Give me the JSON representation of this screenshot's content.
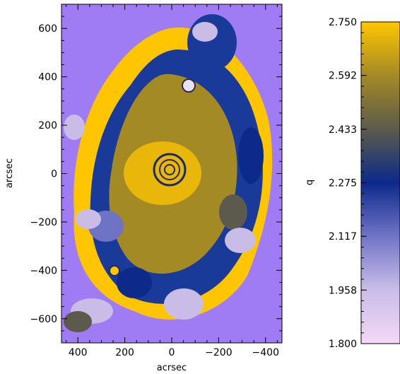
{
  "chart_data": [
    {
      "type": "heatmap",
      "title": "",
      "xlabel": "acrsec",
      "ylabel": "arcsec",
      "xlim": [
        470,
        -470
      ],
      "ylim": [
        -700,
        700
      ],
      "x_ticks": [
        400,
        200,
        0,
        -200,
        -400
      ],
      "x_tick_labels": [
        "400",
        "200",
        "0",
        "−200",
        "−400"
      ],
      "y_ticks": [
        600,
        400,
        200,
        0,
        -200,
        -400,
        -600
      ],
      "y_tick_labels": [
        "600",
        "400",
        "200",
        "0",
        "−200",
        "−400",
        "−600"
      ],
      "background_color": "#9f7cf4",
      "description_value_range": [
        1.8,
        2.75
      ]
    },
    {
      "type": "colorbar",
      "label": "q",
      "range": [
        1.8,
        2.75
      ],
      "ticks": [
        2.75,
        2.592,
        2.433,
        2.275,
        2.117,
        1.958,
        1.8
      ],
      "tick_labels": [
        "2.750",
        "2.592",
        "2.433",
        "2.275",
        "2.117",
        "1.958",
        "1.800"
      ],
      "colormap": [
        {
          "value": 1.8,
          "color": "#f4d8f7"
        },
        {
          "value": 1.96,
          "color": "#c9bde8"
        },
        {
          "value": 2.12,
          "color": "#6f73c6"
        },
        {
          "value": 2.275,
          "color": "#0c2a8a"
        },
        {
          "value": 2.43,
          "color": "#5b5a4c"
        },
        {
          "value": 2.592,
          "color": "#a48a25"
        },
        {
          "value": 2.75,
          "color": "#ffc600"
        }
      ]
    }
  ]
}
